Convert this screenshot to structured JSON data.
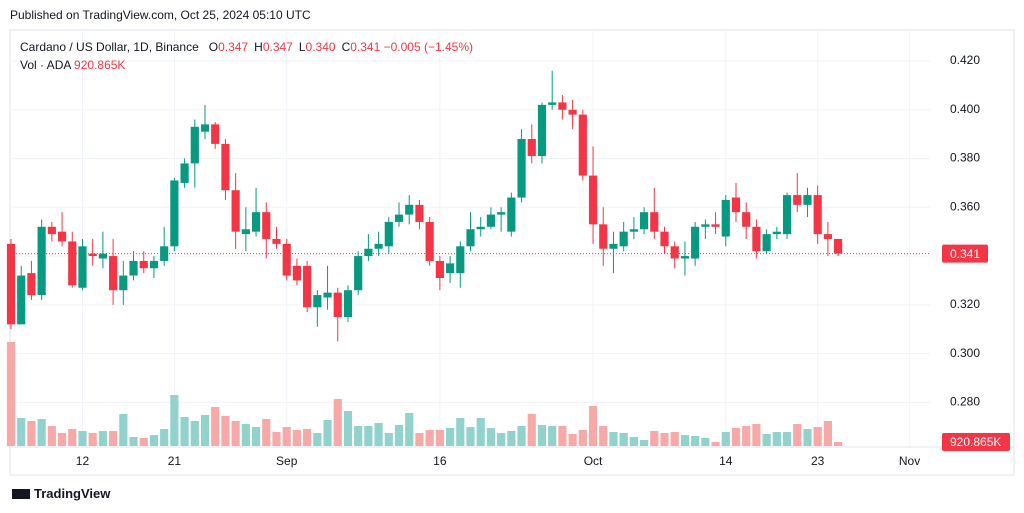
{
  "logo": "TradingView",
  "chart_data": {
    "type": "candlestick",
    "published": "Published on TradingView.com, Oct 25, 2024 05:10 UTC",
    "title": "Cardano / US Dollar, 1D, Binance",
    "ohlc": [
      {
        "key": "O",
        "value": "0.347"
      },
      {
        "key": "H",
        "value": "0.347"
      },
      {
        "key": "L",
        "value": "0.340"
      },
      {
        "key": "C",
        "value": "0.341"
      }
    ],
    "change": "−0.005 (−1.45%)",
    "volume_title": "Vol · ADA",
    "last_volume_label": "920.865K",
    "last_price_label": "0.341",
    "up_color": "#089981",
    "down_color": "#f23645",
    "volume_up_color": "#92d2cc",
    "volume_down_color": "#f7a9a7",
    "x": [
      "Aug 5",
      "Aug 6",
      "Aug 7",
      "Aug 8",
      "Aug 9",
      "Aug 10",
      "Aug 11",
      "Aug 12",
      "Aug 13",
      "Aug 14",
      "Aug 15",
      "Aug 16",
      "Aug 17",
      "Aug 18",
      "Aug 19",
      "Aug 20",
      "Aug 21",
      "Aug 22",
      "Aug 23",
      "Aug 24",
      "Aug 25",
      "Aug 26",
      "Aug 27",
      "Aug 28",
      "Aug 29",
      "Aug 30",
      "Aug 31",
      "Sep 1",
      "Sep 2",
      "Sep 3",
      "Sep 4",
      "Sep 5",
      "Sep 6",
      "Sep 7",
      "Sep 8",
      "Sep 9",
      "Sep 10",
      "Sep 11",
      "Sep 12",
      "Sep 13",
      "Sep 14",
      "Sep 15",
      "Sep 16",
      "Sep 17",
      "Sep 18",
      "Sep 19",
      "Sep 20",
      "Sep 21",
      "Sep 22",
      "Sep 23",
      "Sep 24",
      "Sep 25",
      "Sep 26",
      "Sep 27",
      "Sep 28",
      "Sep 29",
      "Sep 30",
      "Oct 1",
      "Oct 2",
      "Oct 3",
      "Oct 4",
      "Oct 5",
      "Oct 6",
      "Oct 7",
      "Oct 8",
      "Oct 9",
      "Oct 10",
      "Oct 11",
      "Oct 12",
      "Oct 13",
      "Oct 14",
      "Oct 15",
      "Oct 16",
      "Oct 17",
      "Oct 18",
      "Oct 19",
      "Oct 20",
      "Oct 21",
      "Oct 22",
      "Oct 23",
      "Oct 24",
      "Oct 25"
    ],
    "open": [
      0.345,
      0.312,
      0.333,
      0.324,
      0.352,
      0.35,
      0.346,
      0.327,
      0.341,
      0.339,
      0.34,
      0.326,
      0.332,
      0.338,
      0.335,
      0.338,
      0.344,
      0.37,
      0.378,
      0.391,
      0.394,
      0.386,
      0.367,
      0.349,
      0.35,
      0.358,
      0.347,
      0.345,
      0.336,
      0.336,
      0.319,
      0.323,
      0.325,
      0.315,
      0.326,
      0.34,
      0.343,
      0.344,
      0.354,
      0.357,
      0.361,
      0.354,
      0.338,
      0.333,
      0.333,
      0.344,
      0.351,
      0.352,
      0.357,
      0.35,
      0.364,
      0.388,
      0.381,
      0.402,
      0.403,
      0.4,
      0.398,
      0.373,
      0.353,
      0.343,
      0.344,
      0.35,
      0.351,
      0.358,
      0.35,
      0.344,
      0.339,
      0.339,
      0.352,
      0.353,
      0.348,
      0.364,
      0.358,
      0.352,
      0.342,
      0.349,
      0.349,
      0.365,
      0.361,
      0.365,
      0.349,
      0.347
    ],
    "high": [
      0.347,
      0.336,
      0.338,
      0.355,
      0.354,
      0.358,
      0.35,
      0.347,
      0.347,
      0.35,
      0.347,
      0.338,
      0.342,
      0.342,
      0.34,
      0.352,
      0.372,
      0.38,
      0.396,
      0.402,
      0.395,
      0.388,
      0.374,
      0.36,
      0.368,
      0.362,
      0.352,
      0.347,
      0.339,
      0.338,
      0.326,
      0.336,
      0.327,
      0.328,
      0.342,
      0.349,
      0.35,
      0.356,
      0.362,
      0.365,
      0.363,
      0.356,
      0.34,
      0.34,
      0.346,
      0.358,
      0.356,
      0.36,
      0.36,
      0.366,
      0.392,
      0.394,
      0.403,
      0.416,
      0.406,
      0.404,
      0.4,
      0.385,
      0.36,
      0.35,
      0.354,
      0.356,
      0.36,
      0.368,
      0.352,
      0.346,
      0.346,
      0.354,
      0.355,
      0.358,
      0.365,
      0.37,
      0.362,
      0.355,
      0.351,
      0.352,
      0.366,
      0.374,
      0.368,
      0.369,
      0.354,
      0.347
    ],
    "low": [
      0.31,
      0.312,
      0.322,
      0.322,
      0.346,
      0.344,
      0.327,
      0.326,
      0.336,
      0.335,
      0.32,
      0.32,
      0.33,
      0.333,
      0.331,
      0.336,
      0.342,
      0.368,
      0.368,
      0.388,
      0.384,
      0.363,
      0.343,
      0.342,
      0.348,
      0.339,
      0.343,
      0.33,
      0.328,
      0.317,
      0.311,
      0.318,
      0.305,
      0.313,
      0.324,
      0.338,
      0.34,
      0.341,
      0.352,
      0.353,
      0.351,
      0.336,
      0.326,
      0.329,
      0.327,
      0.342,
      0.348,
      0.351,
      0.35,
      0.348,
      0.362,
      0.378,
      0.378,
      0.4,
      0.396,
      0.392,
      0.371,
      0.345,
      0.336,
      0.333,
      0.342,
      0.347,
      0.349,
      0.347,
      0.341,
      0.335,
      0.332,
      0.336,
      0.347,
      0.349,
      0.344,
      0.354,
      0.347,
      0.339,
      0.341,
      0.347,
      0.347,
      0.358,
      0.356,
      0.345,
      0.34,
      0.34
    ],
    "close": [
      0.312,
      0.332,
      0.324,
      0.352,
      0.349,
      0.346,
      0.328,
      0.344,
      0.34,
      0.341,
      0.326,
      0.332,
      0.338,
      0.335,
      0.338,
      0.344,
      0.371,
      0.378,
      0.393,
      0.394,
      0.386,
      0.367,
      0.35,
      0.351,
      0.358,
      0.347,
      0.345,
      0.332,
      0.33,
      0.319,
      0.324,
      0.325,
      0.315,
      0.326,
      0.34,
      0.343,
      0.345,
      0.354,
      0.357,
      0.361,
      0.354,
      0.338,
      0.331,
      0.337,
      0.344,
      0.351,
      0.352,
      0.357,
      0.358,
      0.364,
      0.388,
      0.381,
      0.402,
      0.403,
      0.4,
      0.398,
      0.373,
      0.353,
      0.343,
      0.345,
      0.35,
      0.351,
      0.358,
      0.35,
      0.344,
      0.339,
      0.34,
      0.352,
      0.353,
      0.352,
      0.363,
      0.358,
      0.352,
      0.342,
      0.349,
      0.35,
      0.365,
      0.361,
      0.365,
      0.349,
      0.347,
      0.341
    ],
    "volume": [
      23920000,
      6440000,
      5750000,
      6210000,
      4600000,
      2990000,
      3910000,
      3450000,
      2990000,
      3450000,
      3450000,
      7360000,
      2070000,
      1840000,
      2530000,
      3910000,
      11730000,
      6670000,
      5750000,
      7130000,
      8970000,
      6900000,
      5750000,
      5060000,
      4370000,
      6210000,
      3220000,
      4370000,
      3680000,
      3910000,
      2990000,
      5980000,
      10810000,
      8050000,
      4600000,
      4600000,
      5290000,
      2990000,
      4830000,
      7590000,
      2990000,
      3680000,
      3680000,
      4140000,
      6440000,
      4370000,
      6440000,
      4140000,
      2990000,
      3450000,
      4600000,
      7360000,
      4830000,
      4600000,
      4600000,
      2760000,
      3680000,
      9200000,
      4600000,
      3220000,
      2990000,
      2070000,
      1380000,
      3450000,
      2990000,
      3220000,
      2530000,
      2300000,
      1840000,
      920000,
      3220000,
      4140000,
      4600000,
      5060000,
      2760000,
      3220000,
      3220000,
      5060000,
      3910000,
      4370000,
      5750000,
      920865
    ],
    "xlim": [
      "Aug 5",
      "Nov 3"
    ],
    "xticks": [
      {
        "value": "Aug 12",
        "label": "12"
      },
      {
        "value": "Aug 21",
        "label": "21"
      },
      {
        "value": "Sep 1",
        "label": "Sep"
      },
      {
        "value": "Sep 16",
        "label": "16"
      },
      {
        "value": "Oct 1",
        "label": "Oct"
      },
      {
        "value": "Oct 14",
        "label": "14"
      },
      {
        "value": "Oct 23",
        "label": "23"
      },
      {
        "value": "Nov 1",
        "label": "Nov"
      }
    ],
    "ylim": [
      0.2617,
      0.4327
    ],
    "yticks": [
      {
        "value": 0.28,
        "label": "0.280"
      },
      {
        "value": 0.3,
        "label": "0.300"
      },
      {
        "value": 0.32,
        "label": "0.320"
      },
      {
        "value": 0.34,
        "label": "0.340"
      },
      {
        "value": 0.36,
        "label": "0.360"
      },
      {
        "value": 0.38,
        "label": "0.380"
      },
      {
        "value": 0.4,
        "label": "0.400"
      },
      {
        "value": 0.42,
        "label": "0.420"
      }
    ],
    "grid": true
  }
}
